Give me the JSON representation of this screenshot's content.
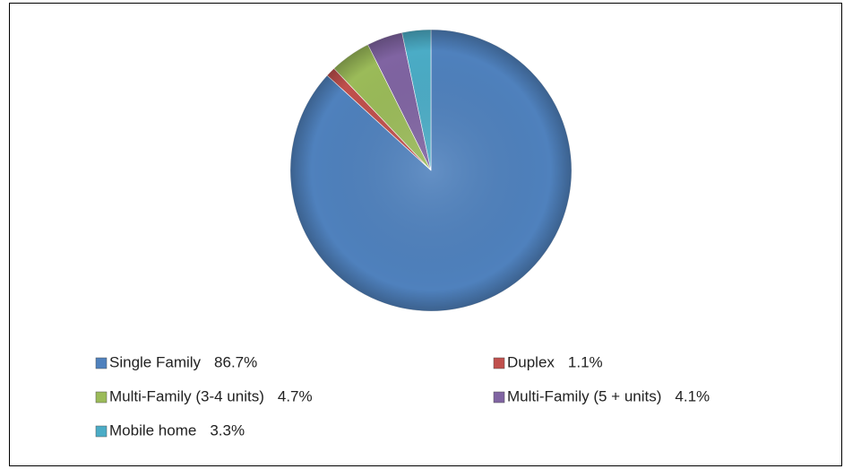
{
  "chart_data": {
    "type": "pie",
    "categories": [
      "Single Family",
      "Duplex",
      "Multi-Family (3-4 units)",
      "Multi-Family (5 + units)",
      "Mobile home"
    ],
    "values": [
      86.7,
      1.1,
      4.7,
      4.1,
      3.3
    ],
    "value_labels": [
      "86.7%",
      "1.1%",
      "4.7%",
      "4.1%",
      "3.3%"
    ],
    "colors": [
      "#4f81bd",
      "#c0504d",
      "#9bbb59",
      "#8064a2",
      "#4bacc6"
    ]
  }
}
